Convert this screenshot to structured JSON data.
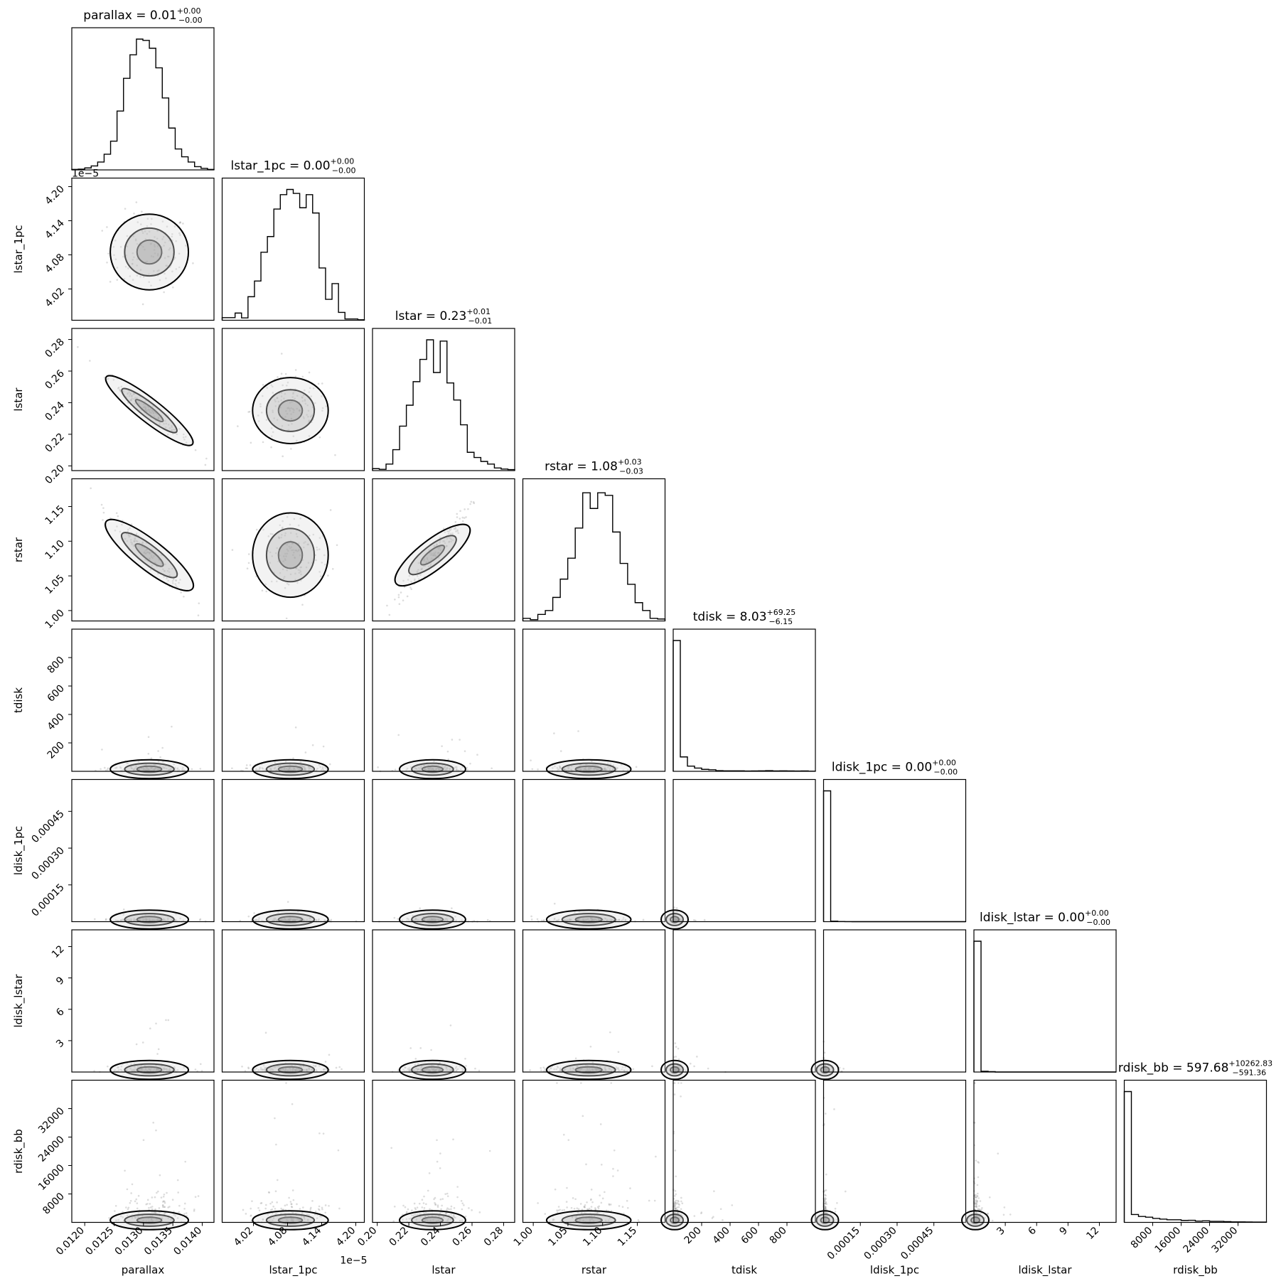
{
  "chart_data": {
    "type": "corner",
    "parameters": [
      "parallax",
      "lstar_1pc",
      "lstar",
      "rstar",
      "tdisk",
      "ldisk_1pc",
      "ldisk_lstar",
      "rdisk_bb"
    ],
    "titles": [
      {
        "param": "parallax",
        "text": "parallax = 0.01",
        "sup": "+0.00",
        "sub": "−0.00"
      },
      {
        "param": "lstar_1pc",
        "text": "lstar_1pc = 0.00",
        "sup": "+0.00",
        "sub": "−0.00"
      },
      {
        "param": "lstar",
        "text": "lstar = 0.23",
        "sup": "+0.01",
        "sub": "−0.01"
      },
      {
        "param": "rstar",
        "text": "rstar = 1.08",
        "sup": "+0.03",
        "sub": "−0.03"
      },
      {
        "param": "tdisk",
        "text": "tdisk = 8.03",
        "sup": "+69.25",
        "sub": "−6.15"
      },
      {
        "param": "ldisk_1pc",
        "text": "ldisk_1pc = 0.00",
        "sup": "+0.00",
        "sub": "−0.00"
      },
      {
        "param": "ldisk_lstar",
        "text": "ldisk_lstar = 0.00",
        "sup": "+0.00",
        "sub": "−0.00"
      },
      {
        "param": "rdisk_bb",
        "text": "rdisk_bb = 597.68",
        "sup": "+10262.83",
        "sub": "−591.36"
      }
    ],
    "axes": [
      {
        "param": "parallax",
        "range": [
          0.01178,
          0.0142
        ],
        "ticks": [
          0.012,
          0.0125,
          0.013,
          0.0135,
          0.014
        ],
        "tick_labels": [
          "0.0120",
          "0.0125",
          "0.0130",
          "0.0135",
          "0.0140"
        ],
        "offset": ""
      },
      {
        "param": "lstar_1pc",
        "range": [
          3.965,
          4.215
        ],
        "ticks": [
          4.02,
          4.08,
          4.14,
          4.2
        ],
        "tick_labels": [
          "4.02",
          "4.08",
          "4.14",
          "4.20"
        ],
        "offset": "1e−5"
      },
      {
        "param": "lstar",
        "range": [
          0.197,
          0.287
        ],
        "ticks": [
          0.2,
          0.22,
          0.24,
          0.26,
          0.28
        ],
        "tick_labels": [
          "0.20",
          "0.22",
          "0.24",
          "0.26",
          "0.28"
        ],
        "offset": ""
      },
      {
        "param": "rstar",
        "range": [
          0.985,
          1.19
        ],
        "ticks": [
          1.0,
          1.05,
          1.1,
          1.15
        ],
        "tick_labels": [
          "1.00",
          "1.05",
          "1.10",
          "1.15"
        ],
        "offset": ""
      },
      {
        "param": "tdisk",
        "range": [
          0,
          1000
        ],
        "ticks": [
          200,
          400,
          600,
          800
        ],
        "tick_labels": [
          "200",
          "400",
          "600",
          "800"
        ],
        "offset": ""
      },
      {
        "param": "ldisk_1pc",
        "range": [
          0,
          0.00058
        ],
        "ticks": [
          0.00015,
          0.0003,
          0.00045
        ],
        "tick_labels": [
          "0.00015",
          "0.00030",
          "0.00045"
        ],
        "offset": ""
      },
      {
        "param": "ldisk_lstar",
        "range": [
          0,
          13.6
        ],
        "ticks": [
          3,
          6,
          9,
          12
        ],
        "tick_labels": [
          "3",
          "6",
          "9",
          "12"
        ],
        "offset": ""
      },
      {
        "param": "rdisk_bb",
        "range": [
          0,
          40000
        ],
        "ticks": [
          8000,
          16000,
          24000,
          32000
        ],
        "tick_labels": [
          "8000",
          "16000",
          "24000",
          "32000"
        ],
        "offset": ""
      }
    ],
    "histograms": [
      [
        0.004,
        0.006,
        0.015,
        0.03,
        0.06,
        0.12,
        0.22,
        0.45,
        0.7,
        0.88,
        1.0,
        0.99,
        0.93,
        0.78,
        0.55,
        0.32,
        0.16,
        0.1,
        0.06,
        0.025,
        0.012,
        0.004
      ],
      [
        0.02,
        0.02,
        0.055,
        0.018,
        0.18,
        0.3,
        0.52,
        0.64,
        0.85,
        0.96,
        1.0,
        0.97,
        0.86,
        0.96,
        0.82,
        0.4,
        0.16,
        0.28,
        0.06,
        0.01,
        0.01,
        0.004
      ],
      [
        0.015,
        0.01,
        0.05,
        0.16,
        0.34,
        0.5,
        0.68,
        0.85,
        1.0,
        0.75,
        0.99,
        0.67,
        0.54,
        0.35,
        0.14,
        0.1,
        0.07,
        0.05,
        0.02,
        0.012,
        0.008
      ],
      [
        0.02,
        0.01,
        0.05,
        0.08,
        0.18,
        0.32,
        0.48,
        0.71,
        0.98,
        0.86,
        0.98,
        0.96,
        0.68,
        0.44,
        0.28,
        0.14,
        0.08,
        0.02,
        0.015
      ],
      [
        1.0,
        0.11,
        0.04,
        0.025,
        0.015,
        0.012,
        0.005,
        0.004,
        0.004,
        0.004,
        0.002,
        0.003,
        0.004,
        0.005,
        0.003,
        0.004,
        0.003,
        0.002,
        0.003,
        0.001
      ],
      [
        1.0,
        0.004,
        0.001,
        0.0005,
        0,
        0,
        0,
        0,
        0,
        0,
        0,
        0,
        0,
        0,
        0,
        0,
        0,
        0,
        0,
        0
      ],
      [
        1.0,
        0.006,
        0.003,
        0,
        0,
        0,
        0,
        0,
        0,
        0,
        0,
        0,
        0,
        0,
        0,
        0,
        0,
        0,
        0,
        0
      ],
      [
        1.0,
        0.06,
        0.045,
        0.04,
        0.03,
        0.025,
        0.02,
        0.02,
        0.015,
        0.016,
        0.01,
        0.012,
        0.008,
        0.008,
        0.006,
        0.004,
        0.004,
        0.003,
        0.002,
        0.002
      ]
    ],
    "posterior": {
      "means": [
        0.0131,
        4.085,
        0.235,
        1.08,
        30,
        8e-06,
        0.5,
        2500
      ],
      "sigmas": [
        0.00035,
        0.035,
        0.011,
        0.032,
        25,
        6e-06,
        0.3,
        3500
      ],
      "correlations": {
        "0_2": -0.97,
        "0_3": -0.97,
        "2_3": 0.97
      }
    },
    "grid": false,
    "legend": "none"
  }
}
